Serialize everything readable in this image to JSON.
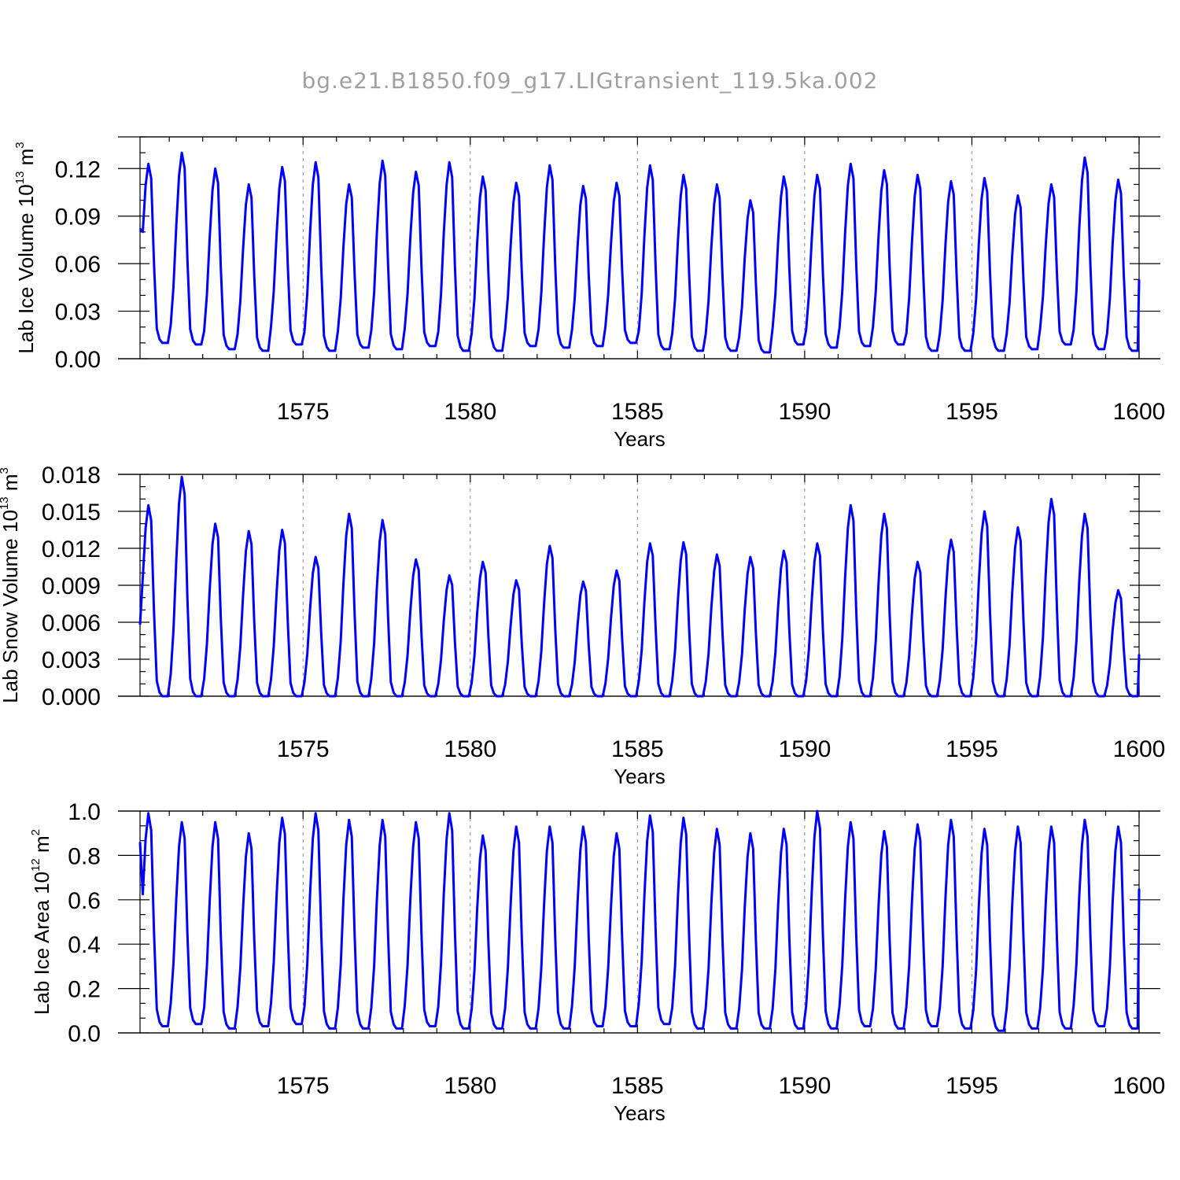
{
  "title": "bg.e21.B1850.f09_g17.LIGtransient_119.5ka.002",
  "colors": {
    "series": "#0000ff",
    "grid": "#8a8a8a",
    "title": "#a0a0a0"
  },
  "chart_data": [
    {
      "type": "line",
      "xlabel": "Years",
      "ylabel": {
        "main": "Lab Ice Volume 10",
        "sup": "13",
        "unit": " m",
        "unit_sup": "3"
      },
      "xlim": [
        1570.125,
        1600.0
      ],
      "ylim": [
        0.0,
        0.14
      ],
      "xticks": [
        1575,
        1580,
        1585,
        1590,
        1595,
        1600
      ],
      "xtick_labels": [
        "1575",
        "1580",
        "1585",
        "1590",
        "1595",
        "1600"
      ],
      "yticks": [
        0.0,
        0.03,
        0.06,
        0.09,
        0.12
      ],
      "ytick_labels": [
        "0.00",
        "0.03",
        "0.06",
        "0.09",
        "0.12"
      ],
      "grid": "vertical-dashed",
      "peaks": [
        0.123,
        0.13,
        0.12,
        0.11,
        0.121,
        0.124,
        0.11,
        0.125,
        0.118,
        0.124,
        0.115,
        0.111,
        0.122,
        0.109,
        0.111,
        0.122,
        0.116,
        0.11,
        0.1,
        0.115,
        0.116,
        0.123,
        0.119,
        0.116,
        0.112,
        0.114,
        0.103,
        0.11,
        0.127,
        0.113
      ],
      "troughs": [
        0.01,
        0.009,
        0.006,
        0.005,
        0.009,
        0.005,
        0.007,
        0.006,
        0.008,
        0.005,
        0.005,
        0.008,
        0.007,
        0.008,
        0.01,
        0.006,
        0.005,
        0.005,
        0.004,
        0.009,
        0.007,
        0.008,
        0.009,
        0.005,
        0.005,
        0.005,
        0.006,
        0.009,
        0.006,
        0.005
      ],
      "start_value": 0.082,
      "end_value": 0.05
    },
    {
      "type": "line",
      "xlabel": "Years",
      "ylabel": {
        "main": "Lab Snow Volume 10",
        "sup": "13",
        "unit": " m",
        "unit_sup": "3"
      },
      "xlim": [
        1570.125,
        1600.0
      ],
      "ylim": [
        0.0,
        0.018
      ],
      "xticks": [
        1575,
        1580,
        1585,
        1590,
        1595,
        1600
      ],
      "xtick_labels": [
        "1575",
        "1580",
        "1585",
        "1590",
        "1595",
        "1600"
      ],
      "yticks": [
        0.0,
        0.003,
        0.006,
        0.009,
        0.012,
        0.015,
        0.018
      ],
      "ytick_labels": [
        "0.000",
        "0.003",
        "0.006",
        "0.009",
        "0.012",
        "0.015",
        "0.018"
      ],
      "grid": "vertical-dashed",
      "peaks": [
        0.0155,
        0.0178,
        0.014,
        0.0134,
        0.0135,
        0.0113,
        0.0148,
        0.0143,
        0.0111,
        0.0098,
        0.0109,
        0.0094,
        0.0122,
        0.0093,
        0.0102,
        0.0124,
        0.0125,
        0.0115,
        0.0113,
        0.0118,
        0.0124,
        0.0155,
        0.0148,
        0.0109,
        0.0127,
        0.015,
        0.0137,
        0.016,
        0.0148,
        0.0086
      ],
      "troughs": [
        0.0,
        0.0,
        0.0,
        0.0,
        0.0,
        0.0,
        0.0,
        0.0,
        0.0,
        0.0,
        0.0,
        0.0,
        0.0,
        0.0,
        0.0,
        0.0,
        0.0,
        0.0,
        0.0,
        0.0,
        0.0,
        0.0,
        0.0,
        0.0,
        0.0,
        0.0,
        0.0,
        0.0,
        0.0,
        0.0
      ],
      "start_value": 0.0058,
      "end_value": 0.0034
    },
    {
      "type": "line",
      "xlabel": "Years",
      "ylabel": {
        "main": "Lab Ice Area 10",
        "sup": "12",
        "unit": " m",
        "unit_sup": "2"
      },
      "xlim": [
        1570.125,
        1600.0
      ],
      "ylim": [
        0.0,
        1.0
      ],
      "xticks": [
        1575,
        1580,
        1585,
        1590,
        1595,
        1600
      ],
      "xtick_labels": [
        "1575",
        "1580",
        "1585",
        "1590",
        "1595",
        "1600"
      ],
      "yticks": [
        0.0,
        0.2,
        0.4,
        0.6,
        0.8,
        1.0
      ],
      "ytick_labels": [
        "0.0",
        "0.2",
        "0.4",
        "0.6",
        "0.8",
        "1.0"
      ],
      "grid": "vertical-dashed",
      "peaks": [
        0.99,
        0.95,
        0.95,
        0.9,
        0.97,
        0.99,
        0.96,
        0.96,
        0.95,
        0.99,
        0.89,
        0.93,
        0.93,
        0.93,
        0.9,
        0.98,
        0.97,
        0.92,
        0.9,
        0.92,
        1.0,
        0.95,
        0.91,
        0.94,
        0.96,
        0.92,
        0.93,
        0.93,
        0.96,
        0.93
      ],
      "troughs": [
        0.03,
        0.04,
        0.02,
        0.03,
        0.04,
        0.02,
        0.02,
        0.02,
        0.03,
        0.02,
        0.02,
        0.02,
        0.02,
        0.03,
        0.03,
        0.04,
        0.02,
        0.02,
        0.02,
        0.02,
        0.02,
        0.03,
        0.02,
        0.03,
        0.02,
        0.01,
        0.02,
        0.02,
        0.03,
        0.02
      ],
      "start_value": 0.86,
      "end_value": 0.65
    }
  ]
}
